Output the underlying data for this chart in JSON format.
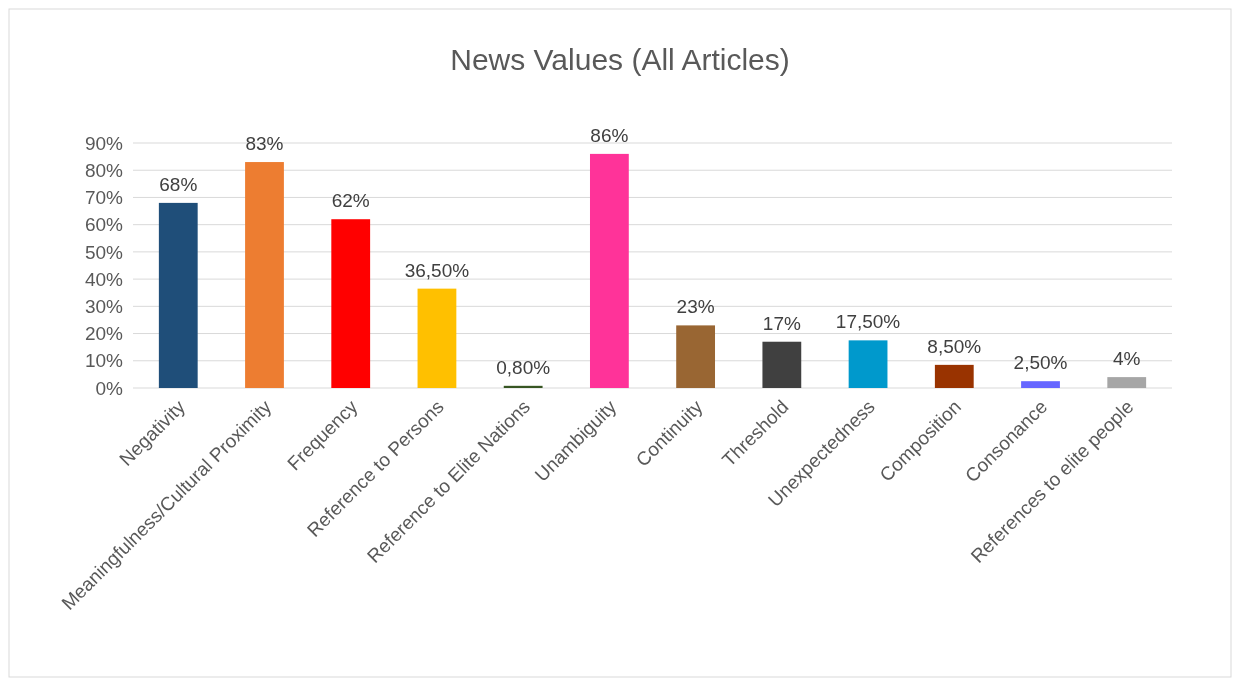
{
  "chart_data": {
    "type": "bar",
    "title": "News Values (All Articles)",
    "categories": [
      "Negativity",
      "Meaningfulness/Cultural Proximity",
      "Frequency",
      "Reference to Persons",
      "Reference to Elite Nations",
      "Unambiguity",
      "Continuity",
      "Threshold",
      "Unexpectedness",
      "Composition",
      "Consonance",
      "References to elite people"
    ],
    "values": [
      68,
      83,
      62,
      36.5,
      0.8,
      86,
      23,
      17,
      17.5,
      8.5,
      2.5,
      4
    ],
    "value_labels": [
      "68%",
      "83%",
      "62%",
      "36,50%",
      "0,80%",
      "86%",
      "23%",
      "17%",
      "17,50%",
      "8,50%",
      "2,50%",
      "4%"
    ],
    "colors": [
      "#1f4e79",
      "#ed7d31",
      "#ff0000",
      "#ffc000",
      "#375623",
      "#ff3399",
      "#996633",
      "#404040",
      "#0099cc",
      "#993300",
      "#6666ff",
      "#a6a6a6"
    ],
    "ylim": [
      0,
      90
    ],
    "yticks": [
      {
        "value": 0,
        "label": "0%"
      },
      {
        "value": 10,
        "label": "10%"
      },
      {
        "value": 20,
        "label": "20%"
      },
      {
        "value": 30,
        "label": "30%"
      },
      {
        "value": 40,
        "label": "40%"
      },
      {
        "value": 50,
        "label": "50%"
      },
      {
        "value": 60,
        "label": "60%"
      },
      {
        "value": 70,
        "label": "70%"
      },
      {
        "value": 80,
        "label": "80%"
      },
      {
        "value": 90,
        "label": "90%"
      }
    ],
    "grid": true
  }
}
